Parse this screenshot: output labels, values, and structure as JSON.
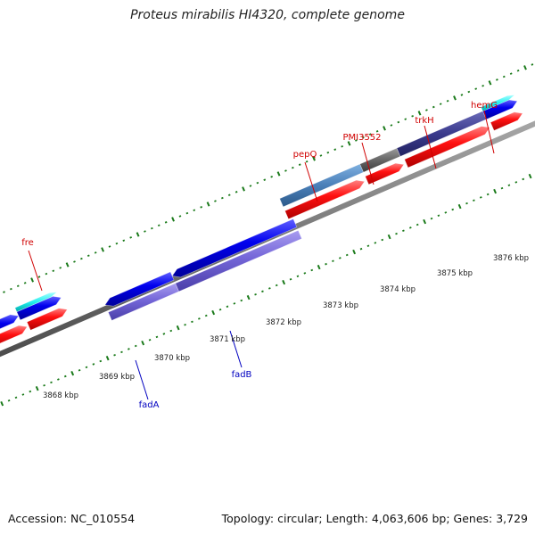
{
  "title": "Proteus mirabilis HI4320, complete genome",
  "footer": {
    "accession": "Accession: NC_010554",
    "summary": "Topology: circular; Length: 4,063,606 bp; Genes: 3,729"
  },
  "colors": {
    "forward_label": "#d00000",
    "reverse_label": "#0000c0",
    "cds": "#ff0000",
    "gene_blue": "#0000ee",
    "gene_violet": "#7060d8",
    "gene_steel": "#4a7fb8",
    "gene_gray": "#666666",
    "gene_navy": "#3a3a8c",
    "cyan": "#22eeee",
    "backbone": "#808080",
    "ticks": "#1a7a1a"
  },
  "forward_genes": [
    {
      "name": "fre"
    },
    {
      "name": "pepQ"
    },
    {
      "name": "PMI3552"
    },
    {
      "name": "trkH"
    },
    {
      "name": "hemG"
    }
  ],
  "reverse_genes": [
    {
      "name": "fadA"
    },
    {
      "name": "fadB"
    }
  ],
  "kbp_ticks": [
    "3868 kbp",
    "3869 kbp",
    "3870 kbp",
    "3871 kbp",
    "3872 kbp",
    "3873 kbp",
    "3874 kbp",
    "3875 kbp",
    "3876 kbp"
  ]
}
